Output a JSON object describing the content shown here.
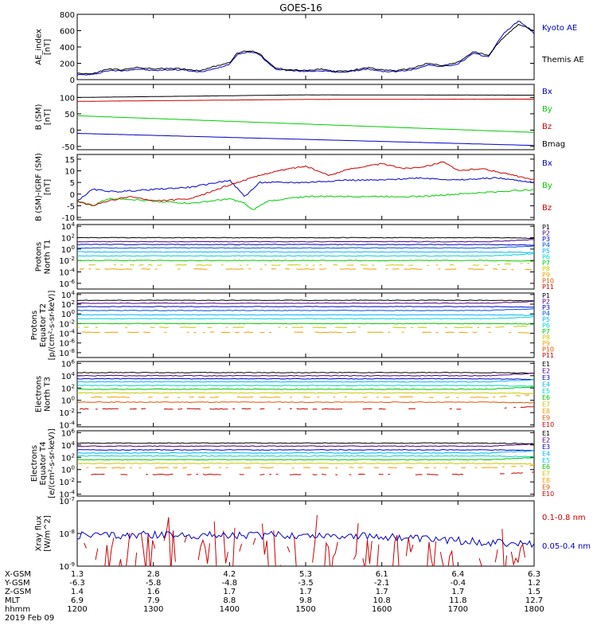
{
  "title": "GOES-16",
  "chart_data": [
    {
      "type": "line",
      "panel": "ae",
      "ylabel": [
        "AE_index",
        "[nT]"
      ],
      "yticks": [
        "800",
        "600",
        "400",
        "200",
        "0"
      ],
      "ylim": [
        0,
        800
      ],
      "series": [
        {
          "name": "Kyoto AE",
          "color": "#0000cc",
          "x": [
            12.0,
            12.2,
            12.4,
            12.6,
            12.8,
            13.0,
            13.2,
            13.4,
            13.6,
            13.8,
            14.0,
            14.1,
            14.2,
            14.3,
            14.4,
            14.5,
            14.6,
            14.8,
            15.0,
            15.2,
            15.4,
            15.6,
            15.8,
            16.0,
            16.2,
            16.4,
            16.6,
            16.8,
            17.0,
            17.2,
            17.4,
            17.6,
            17.8,
            17.9,
            18.0
          ],
          "y": [
            60,
            60,
            110,
            110,
            130,
            110,
            120,
            120,
            90,
            130,
            190,
            310,
            330,
            340,
            300,
            210,
            130,
            110,
            100,
            110,
            90,
            100,
            130,
            100,
            100,
            120,
            180,
            160,
            190,
            320,
            280,
            570,
            720,
            650,
            560
          ]
        },
        {
          "name": "Themis AE",
          "color": "#000000",
          "x": [
            12.0,
            12.2,
            12.4,
            12.6,
            12.8,
            13.0,
            13.2,
            13.4,
            13.6,
            13.8,
            14.0,
            14.1,
            14.2,
            14.3,
            14.4,
            14.5,
            14.6,
            14.8,
            15.0,
            15.2,
            15.4,
            15.6,
            15.8,
            16.0,
            16.2,
            16.4,
            16.6,
            16.8,
            17.0,
            17.2,
            17.4,
            17.6,
            17.8,
            17.9,
            18.0
          ],
          "y": [
            80,
            70,
            130,
            120,
            150,
            130,
            140,
            130,
            110,
            160,
            210,
            320,
            350,
            350,
            320,
            220,
            140,
            120,
            110,
            130,
            100,
            110,
            150,
            120,
            110,
            140,
            200,
            170,
            210,
            340,
            300,
            520,
            680,
            640,
            600
          ]
        }
      ]
    },
    {
      "type": "line",
      "panel": "bsm",
      "ylabel": [
        "B (SM)",
        "[nT]"
      ],
      "yticks": [
        "100",
        "50",
        "0",
        "-50"
      ],
      "ylim": [
        -60,
        140
      ],
      "series": [
        {
          "name": "Bx",
          "color": "#0000cc",
          "x": [
            12,
            18
          ],
          "y": [
            -10,
            -47
          ]
        },
        {
          "name": "By",
          "color": "#00cc00",
          "x": [
            12,
            18
          ],
          "y": [
            44,
            -7
          ]
        },
        {
          "name": "Bz",
          "color": "#cc0000",
          "x": [
            12,
            15,
            18
          ],
          "y": [
            88,
            94,
            95
          ]
        },
        {
          "name": "Bmag",
          "color": "#000000",
          "x": [
            12,
            15,
            18
          ],
          "y": [
            100,
            108,
            107
          ]
        }
      ]
    },
    {
      "type": "line",
      "panel": "bdiff",
      "ylabel": [
        "B (SM)-IGRF (SM)",
        "[nT]"
      ],
      "yticks": [
        "15",
        "10",
        "5",
        "0",
        "-5",
        "-10"
      ],
      "ylim": [
        -11,
        17
      ],
      "series": [
        {
          "name": "Bx",
          "color": "#0000cc",
          "x": [
            12.0,
            12.2,
            12.5,
            13.0,
            13.5,
            14.0,
            14.2,
            14.4,
            14.7,
            15.0,
            15.5,
            16.0,
            16.5,
            17.0,
            17.5,
            18.0
          ],
          "y": [
            -3,
            2,
            1,
            2,
            3,
            6,
            -1,
            5,
            5,
            5,
            6,
            6,
            7,
            6,
            7,
            5
          ]
        },
        {
          "name": "By",
          "color": "#00cc00",
          "x": [
            12.0,
            12.2,
            12.4,
            12.6,
            13.0,
            13.5,
            14.0,
            14.2,
            14.3,
            14.5,
            15.0,
            15.5,
            16.0,
            16.5,
            17.0,
            17.5,
            18.0
          ],
          "y": [
            -3,
            -5,
            -2,
            -2,
            -3,
            -4,
            -2,
            -4,
            -7,
            -3,
            -1,
            -1,
            -1,
            -1,
            0,
            1,
            2
          ]
        },
        {
          "name": "Bz",
          "color": "#cc0000",
          "x": [
            12.0,
            12.2,
            12.4,
            12.7,
            13.0,
            13.5,
            14.0,
            14.2,
            14.5,
            14.8,
            15.0,
            15.3,
            15.6,
            16.0,
            16.3,
            16.6,
            16.8,
            17.0,
            17.3,
            17.6,
            18.0
          ],
          "y": [
            -3,
            -5,
            -3,
            -1,
            -3,
            -2,
            4,
            6,
            9,
            11,
            12,
            8,
            11,
            13,
            11,
            12,
            14,
            10,
            11,
            9,
            6
          ]
        }
      ]
    },
    {
      "type": "line",
      "panel": "protons_t1",
      "ylabel": [
        "Protons",
        "North T1"
      ],
      "yticks": [
        "10^4",
        "10^2",
        "10^0",
        "10^-2",
        "10^-4",
        "10^-6"
      ],
      "log_scale": true,
      "ylim_exp": [
        -7,
        4.3
      ],
      "series": [
        {
          "name": "P1",
          "color": "#000000",
          "base": 2.0
        },
        {
          "name": "P2",
          "color": "#4b0082",
          "base": 1.3
        },
        {
          "name": "P3",
          "color": "#0000cc",
          "base": 0.8
        },
        {
          "name": "P4",
          "color": "#0050e0",
          "base": 0.2
        },
        {
          "name": "P5",
          "color": "#00b4ff",
          "base": -0.5
        },
        {
          "name": "P6",
          "color": "#00d2d2",
          "base": -1.2
        },
        {
          "name": "P7",
          "color": "#00c800",
          "base": -2.0
        },
        {
          "name": "P8",
          "color": "#c8c800",
          "base": -2.8
        },
        {
          "name": "P9",
          "color": "#f0a000",
          "base": -3.5
        },
        {
          "name": "P10",
          "color": "#e65000",
          "base": null
        },
        {
          "name": "P11",
          "color": "#c80000",
          "base": null
        }
      ]
    },
    {
      "type": "line",
      "panel": "protons_t2",
      "ylabel": [
        "Protons",
        "Equator T2",
        "[p/(cm²-s-sr-keV)]"
      ],
      "yticks": [
        "10^4",
        "10^2",
        "10^0",
        "10^-2",
        "10^-4",
        "10^-6",
        "10^-8"
      ],
      "log_scale": true,
      "ylim_exp": [
        -9,
        4.3
      ],
      "series": [
        {
          "name": "P1",
          "color": "#000000",
          "base": 2.8
        },
        {
          "name": "P2",
          "color": "#4b0082",
          "base": 2.2
        },
        {
          "name": "P3",
          "color": "#0000cc",
          "base": 1.5
        },
        {
          "name": "P4",
          "color": "#0050e0",
          "base": 0.7
        },
        {
          "name": "P5",
          "color": "#00b4ff",
          "base": -0.2
        },
        {
          "name": "P6",
          "color": "#00d2d2",
          "base": -1.0
        },
        {
          "name": "P7",
          "color": "#00c800",
          "base": -2.0
        },
        {
          "name": "P8",
          "color": "#c8c800",
          "base": -2.8
        },
        {
          "name": "P9",
          "color": "#f0a000",
          "base": -3.8
        },
        {
          "name": "P10",
          "color": "#e65000",
          "base": null
        },
        {
          "name": "P11",
          "color": "#c80000",
          "base": null
        }
      ]
    },
    {
      "type": "line",
      "panel": "electrons_t3",
      "ylabel": [
        "Electrons",
        "North T3"
      ],
      "yticks": [
        "10^6",
        "10^4",
        "10^2",
        "10^0",
        "10^-2",
        "10^-4"
      ],
      "log_scale": true,
      "ylim_exp": [
        -4.3,
        6.3
      ],
      "series": [
        {
          "name": "E1",
          "color": "#000000",
          "base": 4.5
        },
        {
          "name": "E2",
          "color": "#4b0082",
          "base": 4.0
        },
        {
          "name": "E3",
          "color": "#0000cc",
          "base": 3.5
        },
        {
          "name": "E4",
          "color": "#00b4ff",
          "base": 3.0
        },
        {
          "name": "E5",
          "color": "#00d2d2",
          "base": 2.4
        },
        {
          "name": "E6",
          "color": "#00c800",
          "base": 1.8
        },
        {
          "name": "E7",
          "color": "#c8c800",
          "base": 1.2
        },
        {
          "name": "E8",
          "color": "#f0a000",
          "base": 0.5
        },
        {
          "name": "E9",
          "color": "#e65000",
          "base": -0.3
        },
        {
          "name": "E10",
          "color": "#c80000",
          "base": -1.4
        }
      ]
    },
    {
      "type": "line",
      "panel": "electrons_t4",
      "ylabel": [
        "Electrons",
        "Equator T4",
        "[e/(cm²-s-sr-keV)]"
      ],
      "yticks": [
        "10^6",
        "10^4",
        "10^2",
        "10^0",
        "10^-2",
        "10^-4"
      ],
      "log_scale": true,
      "ylim_exp": [
        -4.3,
        6.3
      ],
      "series": [
        {
          "name": "E1",
          "color": "#000000",
          "base": 4.3
        },
        {
          "name": "E2",
          "color": "#4b0082",
          "base": 3.8
        },
        {
          "name": "E3",
          "color": "#0000cc",
          "base": 3.2
        },
        {
          "name": "E4",
          "color": "#00b4ff",
          "base": 2.7
        },
        {
          "name": "E5",
          "color": "#00d2d2",
          "base": 2.2
        },
        {
          "name": "E6",
          "color": "#00c800",
          "base": 1.6
        },
        {
          "name": "E7",
          "color": "#c8c800",
          "base": 1.0
        },
        {
          "name": "E8",
          "color": "#f0a000",
          "base": 0.3
        },
        {
          "name": "E9",
          "color": "#e65000",
          "base": null
        },
        {
          "name": "E10",
          "color": "#c80000",
          "base": -0.8
        }
      ]
    },
    {
      "type": "line",
      "panel": "xray",
      "ylabel": [
        "Xray flux",
        "[W/m^2]"
      ],
      "yticks": [
        "10^-7",
        "10^-8",
        "10^-9"
      ],
      "log_scale": true,
      "ylim_exp": [
        -9,
        -7
      ],
      "series": [
        {
          "name": "0.1-0.8 nm",
          "color": "#cc0000",
          "base": -8.9
        },
        {
          "name": "0.05-0.4 nm",
          "color": "#0000cc",
          "base": -8.05
        }
      ]
    }
  ],
  "x_axis": {
    "range": [
      12.0,
      18.0
    ],
    "tick_hours": [
      12,
      13,
      14,
      15,
      16,
      17,
      18
    ],
    "rows": [
      {
        "label": "X-GSM",
        "values": [
          "1.3",
          "2.8",
          "4.2",
          "5.3",
          "6.1",
          "6.4",
          "6.3"
        ]
      },
      {
        "label": "Y-GSM",
        "values": [
          "-6.3",
          "-5.8",
          "-4.8",
          "-3.5",
          "-2.1",
          "-0.4",
          "1.2"
        ]
      },
      {
        "label": "Z-GSM",
        "values": [
          "1.4",
          "1.6",
          "1.7",
          "1.7",
          "1.7",
          "1.7",
          "1.5"
        ]
      },
      {
        "label": "MLT",
        "values": [
          "6.9",
          "7.9",
          "8.8",
          "9.8",
          "10.8",
          "11.8",
          "12.7"
        ]
      },
      {
        "label": "hhmm",
        "values": [
          "1200",
          "1300",
          "1400",
          "1500",
          "1600",
          "1700",
          "1800"
        ]
      }
    ],
    "date": "2019 Feb 09"
  }
}
